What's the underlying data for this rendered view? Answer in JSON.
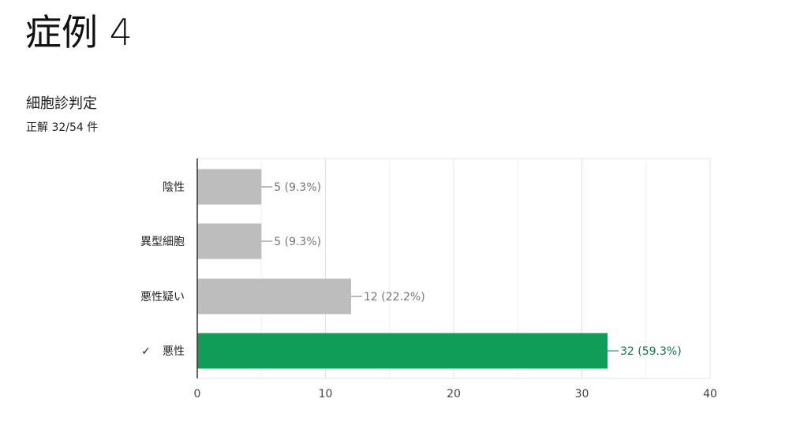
{
  "slide": {
    "title": "症例 4"
  },
  "question": {
    "title": "細胞診判定",
    "score": "正解 32/54 件"
  },
  "colors": {
    "bar_default": "#bdbdbd",
    "bar_correct": "#0f9d58",
    "label_default": "#757575",
    "label_correct": "#0b7a43",
    "grid": "#e6e6e6",
    "axis": "#333333"
  },
  "chart_data": {
    "type": "bar",
    "orientation": "horizontal",
    "title": "",
    "xlabel": "",
    "ylabel": "",
    "xlim": [
      0,
      40
    ],
    "x_ticks": [
      0,
      10,
      20,
      30,
      40
    ],
    "grid": true,
    "legend": "none",
    "categories": [
      {
        "label": "陰性",
        "value": 5,
        "data_label": "5 (9.3%)",
        "correct": false,
        "marker": ""
      },
      {
        "label": "異型細胞",
        "value": 5,
        "data_label": "5 (9.3%)",
        "correct": false,
        "marker": ""
      },
      {
        "label": "悪性疑い",
        "value": 12,
        "data_label": "12 (22.2%)",
        "correct": false,
        "marker": ""
      },
      {
        "label": "悪性",
        "value": 32,
        "data_label": "32 (59.3%)",
        "correct": true,
        "marker": "✓"
      }
    ]
  }
}
